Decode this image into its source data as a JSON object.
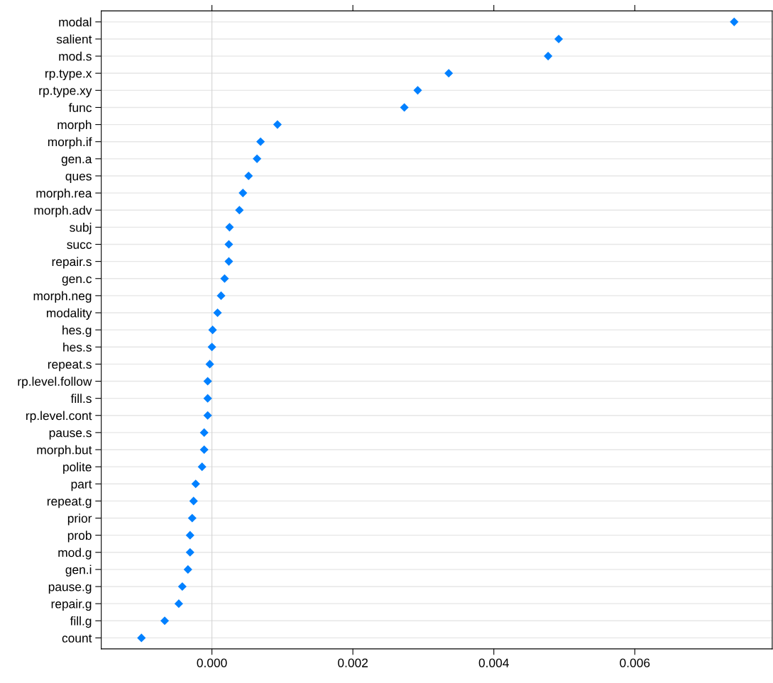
{
  "chart_data": {
    "type": "scatter",
    "orientation": "horizontal",
    "categories": [
      "modal",
      "salient",
      "mod.s",
      "rp.type.x",
      "rp.type.xy",
      "func",
      "morph",
      "morph.if",
      "gen.a",
      "ques",
      "morph.rea",
      "morph.adv",
      "subj",
      "succ",
      "repair.s",
      "gen.c",
      "morph.neg",
      "modality",
      "hes.g",
      "hes.s",
      "repeat.s",
      "rp.level.follow",
      "fill.s",
      "rp.level.cont",
      "pause.s",
      "morph.but",
      "polite",
      "part",
      "repeat.g",
      "prior",
      "prob",
      "mod.g",
      "gen.i",
      "pause.g",
      "repair.g",
      "fill.g",
      "count"
    ],
    "series": [
      {
        "color": "#0080ff",
        "values": [
          0.00741,
          0.00492,
          0.00477,
          0.00336,
          0.00292,
          0.00273,
          0.00093,
          0.00069,
          0.00064,
          0.00052,
          0.00044,
          0.00039,
          0.00025,
          0.00024,
          0.00024,
          0.00018,
          0.00013,
          8e-05,
          1e-05,
          0.0,
          -3e-05,
          -6e-05,
          -6e-05,
          -6e-05,
          -0.00011,
          -0.00011,
          -0.00014,
          -0.00023,
          -0.00026,
          -0.00028,
          -0.00031,
          -0.00031,
          -0.00034,
          -0.00042,
          -0.00047,
          -0.00067,
          -0.001
        ]
      }
    ],
    "xlim": [
      -0.00157,
      0.00795
    ],
    "xticks": [
      {
        "value": 0.0,
        "label": "0.000"
      },
      {
        "value": 0.002,
        "label": "0.002"
      },
      {
        "value": 0.004,
        "label": "0.004"
      },
      {
        "value": 0.006,
        "label": "0.006"
      }
    ],
    "ref_lines": [
      {
        "axis": "x",
        "value": 0.0,
        "label": null,
        "color": "#d3d3d3"
      }
    ],
    "grid": "y",
    "marker": "diamond",
    "legend": false
  }
}
